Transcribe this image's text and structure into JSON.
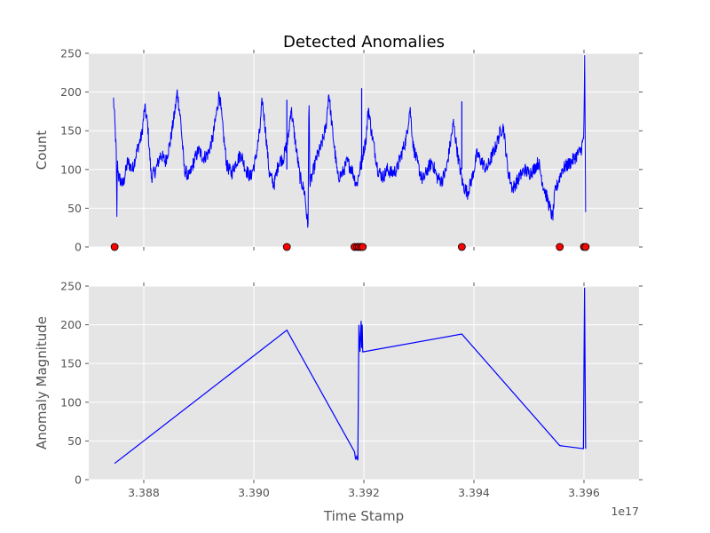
{
  "chart_data": [
    {
      "type": "line",
      "title": "Detected Anomalies",
      "xlabel": "",
      "ylabel": "Count",
      "xlim": [
        338700000000000000,
        339700000000000000
      ],
      "ylim": [
        0,
        250
      ],
      "xticks": [
        338800000000000000,
        339000000000000000,
        339200000000000000,
        339400000000000000,
        339600000000000000
      ],
      "xtick_labels": [
        "3.388",
        "3.390",
        "3.392",
        "3.394",
        "3.396"
      ],
      "x_offset_label": "1e17",
      "yticks": [
        0,
        50,
        100,
        150,
        200,
        250
      ],
      "ytick_labels": [
        "0",
        "50",
        "100",
        "150",
        "200",
        "250"
      ],
      "grid": true,
      "series": [
        {
          "color": "#0000ff",
          "x_range": [
            338745000000000000,
            339603000000000000
          ],
          "y_profile": [
            [
              0.0,
              190
            ],
            [
              0.002,
              170
            ],
            [
              0.004,
              145
            ],
            [
              0.006,
              120
            ],
            [
              0.007,
              22
            ],
            [
              0.008,
              110
            ],
            [
              0.011,
              90
            ],
            [
              0.02,
              80
            ],
            [
              0.03,
              110
            ],
            [
              0.04,
              100
            ],
            [
              0.05,
              125
            ],
            [
              0.06,
              145
            ],
            [
              0.066,
              180
            ],
            [
              0.072,
              160
            ],
            [
              0.08,
              90
            ],
            [
              0.09,
              100
            ],
            [
              0.1,
              120
            ],
            [
              0.11,
              110
            ],
            [
              0.12,
              135
            ],
            [
              0.13,
              175
            ],
            [
              0.135,
              200
            ],
            [
              0.142,
              165
            ],
            [
              0.15,
              100
            ],
            [
              0.16,
              90
            ],
            [
              0.17,
              110
            ],
            [
              0.18,
              125
            ],
            [
              0.19,
              115
            ],
            [
              0.2,
              120
            ],
            [
              0.21,
              140
            ],
            [
              0.22,
              180
            ],
            [
              0.224,
              200
            ],
            [
              0.232,
              150
            ],
            [
              0.24,
              105
            ],
            [
              0.25,
              95
            ],
            [
              0.26,
              110
            ],
            [
              0.27,
              120
            ],
            [
              0.28,
              100
            ],
            [
              0.29,
              90
            ],
            [
              0.3,
              110
            ],
            [
              0.31,
              150
            ],
            [
              0.315,
              190
            ],
            [
              0.322,
              150
            ],
            [
              0.33,
              95
            ],
            [
              0.34,
              80
            ],
            [
              0.35,
              110
            ],
            [
              0.36,
              115
            ],
            [
              0.37,
              140
            ],
            [
              0.376,
              180
            ],
            [
              0.382,
              150
            ],
            [
              0.395,
              90
            ],
            [
              0.405,
              70
            ],
            [
              0.41,
              35
            ],
            [
              0.412,
              25
            ],
            [
              0.414,
              200
            ],
            [
              0.416,
              80
            ],
            [
              0.43,
              115
            ],
            [
              0.44,
              130
            ],
            [
              0.45,
              155
            ],
            [
              0.456,
              200
            ],
            [
              0.462,
              160
            ],
            [
              0.475,
              90
            ],
            [
              0.485,
              95
            ],
            [
              0.495,
              110
            ],
            [
              0.505,
              100
            ],
            [
              0.515,
              80
            ],
            [
              0.525,
              110
            ],
            [
              0.535,
              140
            ],
            [
              0.54,
              180
            ],
            [
              0.546,
              150
            ],
            [
              0.56,
              100
            ],
            [
              0.57,
              90
            ],
            [
              0.58,
              100
            ],
            [
              0.59,
              95
            ],
            [
              0.6,
              100
            ],
            [
              0.61,
              120
            ],
            [
              0.62,
              140
            ],
            [
              0.628,
              180
            ],
            [
              0.635,
              130
            ],
            [
              0.645,
              105
            ],
            [
              0.655,
              85
            ],
            [
              0.665,
              100
            ],
            [
              0.675,
              110
            ],
            [
              0.685,
              90
            ],
            [
              0.695,
              85
            ],
            [
              0.705,
              100
            ],
            [
              0.715,
              140
            ],
            [
              0.72,
              160
            ],
            [
              0.73,
              115
            ],
            [
              0.74,
              80
            ],
            [
              0.75,
              70
            ],
            [
              0.76,
              90
            ],
            [
              0.77,
              120
            ],
            [
              0.78,
              110
            ],
            [
              0.79,
              100
            ],
            [
              0.8,
              115
            ],
            [
              0.81,
              130
            ],
            [
              0.82,
              150
            ],
            [
              0.826,
              155
            ],
            [
              0.835,
              100
            ],
            [
              0.845,
              75
            ],
            [
              0.86,
              90
            ],
            [
              0.87,
              100
            ],
            [
              0.88,
              95
            ],
            [
              0.89,
              100
            ],
            [
              0.9,
              110
            ],
            [
              0.91,
              80
            ],
            [
              0.92,
              60
            ],
            [
              0.93,
              37
            ],
            [
              0.935,
              70
            ],
            [
              0.95,
              100
            ],
            [
              0.97,
              110
            ],
            [
              0.99,
              125
            ],
            [
              0.996,
              140
            ],
            [
              0.998,
              248
            ],
            [
              1.0,
              40
            ]
          ],
          "spikes": [
            {
              "x": 339060000000000000,
              "y": 190
            },
            {
              "x": 339196000000000000,
              "y": 205
            },
            {
              "x": 339378000000000000,
              "y": 188
            }
          ]
        },
        {
          "name": "anomalies",
          "marker": "circle",
          "color": "#ff0000",
          "edgecolor": "#000000",
          "x": [
            338747000000000000,
            339060000000000000,
            339183000000000000,
            339188000000000000,
            339191000000000000,
            339195000000000000,
            339198000000000000,
            339378000000000000,
            339556000000000000,
            339600000000000000,
            339603000000000000
          ],
          "y": [
            0,
            0,
            0,
            0,
            0,
            0,
            0,
            0,
            0,
            0,
            0
          ]
        }
      ]
    },
    {
      "type": "line",
      "title": "",
      "xlabel": "Time Stamp",
      "ylabel": "Anomaly Magnitude",
      "xlim": [
        338700000000000000,
        339700000000000000
      ],
      "ylim": [
        0,
        250
      ],
      "xticks": [
        338800000000000000,
        339000000000000000,
        339200000000000000,
        339400000000000000,
        339600000000000000
      ],
      "xtick_labels": [
        "3.388",
        "3.390",
        "3.392",
        "3.394",
        "3.396"
      ],
      "x_offset_label": "1e17",
      "yticks": [
        0,
        50,
        100,
        150,
        200,
        250
      ],
      "ytick_labels": [
        "0",
        "50",
        "100",
        "150",
        "200",
        "250"
      ],
      "grid": true,
      "series": [
        {
          "color": "#0000ff",
          "x": [
            338747000000000000,
            339060000000000000,
            339183000000000000,
            339185000000000000,
            339187000000000000,
            339189000000000000,
            339191000000000000,
            339193000000000000,
            339195000000000000,
            339196000000000000,
            339197000000000000,
            339198000000000000,
            339378000000000000,
            339556000000000000,
            339599000000000000,
            339601000000000000,
            339603000000000000
          ],
          "y": [
            21,
            193,
            36,
            26,
            30,
            25,
            200,
            165,
            205,
            170,
            200,
            165,
            188,
            44,
            40,
            248,
            40
          ]
        }
      ]
    }
  ]
}
